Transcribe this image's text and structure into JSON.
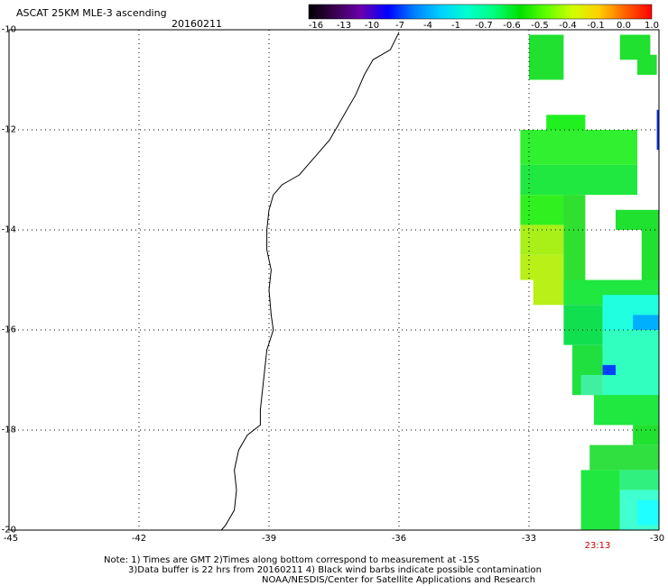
{
  "header": {
    "title": "ASCAT 25KM MLE-3 ascending",
    "date": "20160211"
  },
  "colorbar": {
    "labels": [
      "-16",
      "-13",
      "-10",
      "-7",
      "-4",
      "-1",
      "-0.7",
      "-0.6",
      "-0.5",
      "-0.4",
      "-0.1",
      "0.0",
      "1.0"
    ],
    "colors": [
      "#000000",
      "#3b0050",
      "#6a00b0",
      "#0000ff",
      "#0080ff",
      "#00d0ff",
      "#00ffd0",
      "#00ff80",
      "#00e000",
      "#60ff00",
      "#d0ff00",
      "#ffd000",
      "#ff6000",
      "#ff0000"
    ]
  },
  "axes": {
    "x_labels": [
      "-45",
      "-42",
      "-39",
      "-36",
      "-33",
      "-30"
    ],
    "y_labels": [
      "-10",
      "-12",
      "-14",
      "-16",
      "-18",
      "-20"
    ],
    "lon_range": [
      -45,
      -30
    ],
    "lat_range": [
      -20,
      -10
    ],
    "grid": true
  },
  "pass_time": "23:13",
  "notes": [
    "Note: 1) Times are GMT 2)Times along bottom correspond to measurement at -15S",
    "3)Data buffer is 22 hrs from 20160211 4) Black wind barbs indicate possible contamination",
    "NOAA/NESDIS/Center for Satellite Applications and Research"
  ],
  "data_cells": [
    {
      "lon": -33.0,
      "lat": -10.1,
      "lon2": -32.2,
      "lat2": -11.0,
      "color": "#20e030"
    },
    {
      "lon": -30.9,
      "lat": -10.1,
      "lon2": -30.2,
      "lat2": -10.6,
      "color": "#20e030"
    },
    {
      "lon": -30.5,
      "lat": -10.5,
      "lon2": -30.05,
      "lat2": -10.9,
      "color": "#20e030"
    },
    {
      "lon": -30.05,
      "lat": -11.6,
      "lon2": -30.0,
      "lat2": -12.4,
      "color": "#0030ff"
    },
    {
      "lon": -32.6,
      "lat": -11.7,
      "lon2": -31.7,
      "lat2": -12.3,
      "color": "#20f020"
    },
    {
      "lon": -33.2,
      "lat": -12.0,
      "lon2": -30.5,
      "lat2": -12.7,
      "color": "#30f030"
    },
    {
      "lon": -33.2,
      "lat": -12.7,
      "lon2": -30.5,
      "lat2": -13.3,
      "color": "#20e840"
    },
    {
      "lon": -33.2,
      "lat": -13.3,
      "lon2": -31.9,
      "lat2": -13.9,
      "color": "#30f020"
    },
    {
      "lon": -33.2,
      "lat": -13.9,
      "lon2": -32.2,
      "lat2": -14.5,
      "color": "#a8f018"
    },
    {
      "lon": -33.2,
      "lat": -14.5,
      "lon2": -32.2,
      "lat2": -15.0,
      "color": "#b8f018"
    },
    {
      "lon": -32.9,
      "lat": -15.0,
      "lon2": -32.2,
      "lat2": -15.5,
      "color": "#b8f018"
    },
    {
      "lon": -32.2,
      "lat": -13.3,
      "lon2": -31.7,
      "lat2": -15.0,
      "color": "#30e030"
    },
    {
      "lon": -32.2,
      "lat": -15.0,
      "lon2": -30.0,
      "lat2": -15.5,
      "color": "#20e840"
    },
    {
      "lon": -31.0,
      "lat": -13.6,
      "lon2": -30.0,
      "lat2": -14.0,
      "color": "#20e030"
    },
    {
      "lon": -30.4,
      "lat": -14.0,
      "lon2": -30.0,
      "lat2": -15.0,
      "color": "#20e030"
    },
    {
      "lon": -32.2,
      "lat": -15.5,
      "lon2": -31.3,
      "lat2": -16.3,
      "color": "#10e050"
    },
    {
      "lon": -31.3,
      "lat": -15.3,
      "lon2": -30.0,
      "lat2": -16.0,
      "color": "#20ffe0"
    },
    {
      "lon": -30.6,
      "lat": -15.7,
      "lon2": -30.0,
      "lat2": -16.3,
      "color": "#00b0ff"
    },
    {
      "lon": -32.0,
      "lat": -16.3,
      "lon2": -31.3,
      "lat2": -17.3,
      "color": "#20e040"
    },
    {
      "lon": -31.3,
      "lat": -16.0,
      "lon2": -30.0,
      "lat2": -17.5,
      "color": "#30ffc0"
    },
    {
      "lon": -31.3,
      "lat": -16.7,
      "lon2": -31.0,
      "lat2": -16.9,
      "color": "#0040ff"
    },
    {
      "lon": -31.8,
      "lat": -16.9,
      "lon2": -31.3,
      "lat2": -17.3,
      "color": "#40f0a0"
    },
    {
      "lon": -31.5,
      "lat": -17.3,
      "lon2": -30.0,
      "lat2": -17.9,
      "color": "#20e840"
    },
    {
      "lon": -30.6,
      "lat": -17.9,
      "lon2": -30.0,
      "lat2": -18.3,
      "color": "#20e030"
    },
    {
      "lon": -31.6,
      "lat": -18.3,
      "lon2": -30.0,
      "lat2": -18.8,
      "color": "#30e040"
    },
    {
      "lon": -31.8,
      "lat": -18.8,
      "lon2": -30.9,
      "lat2": -20.0,
      "color": "#20e840"
    },
    {
      "lon": -30.9,
      "lat": -18.8,
      "lon2": -30.0,
      "lat2": -19.2,
      "color": "#30f080"
    },
    {
      "lon": -30.9,
      "lat": -19.2,
      "lon2": -30.0,
      "lat2": -20.0,
      "color": "#40ffd0"
    },
    {
      "lon": -30.5,
      "lat": -19.4,
      "lon2": -30.0,
      "lat2": -19.9,
      "color": "#20ffff"
    }
  ],
  "coastline": [
    [
      -36.0,
      -10.05
    ],
    [
      -36.2,
      -10.4
    ],
    [
      -36.6,
      -10.6
    ],
    [
      -36.8,
      -10.9
    ],
    [
      -37.0,
      -11.3
    ],
    [
      -37.2,
      -11.6
    ],
    [
      -37.4,
      -11.9
    ],
    [
      -37.6,
      -12.2
    ],
    [
      -37.9,
      -12.5
    ],
    [
      -38.1,
      -12.7
    ],
    [
      -38.3,
      -12.9
    ],
    [
      -38.5,
      -13.0
    ],
    [
      -38.7,
      -13.1
    ],
    [
      -38.9,
      -13.3
    ],
    [
      -39.0,
      -13.6
    ],
    [
      -39.05,
      -14.0
    ],
    [
      -39.05,
      -14.4
    ],
    [
      -38.95,
      -14.8
    ],
    [
      -39.0,
      -15.2
    ],
    [
      -38.95,
      -15.7
    ],
    [
      -38.9,
      -16.0
    ],
    [
      -39.05,
      -16.4
    ],
    [
      -39.1,
      -16.8
    ],
    [
      -39.15,
      -17.2
    ],
    [
      -39.2,
      -17.6
    ],
    [
      -39.2,
      -17.9
    ],
    [
      -39.5,
      -18.1
    ],
    [
      -39.7,
      -18.4
    ],
    [
      -39.8,
      -18.8
    ],
    [
      -39.75,
      -19.2
    ],
    [
      -39.8,
      -19.6
    ],
    [
      -40.0,
      -19.9
    ],
    [
      -40.1,
      -20.0
    ]
  ]
}
